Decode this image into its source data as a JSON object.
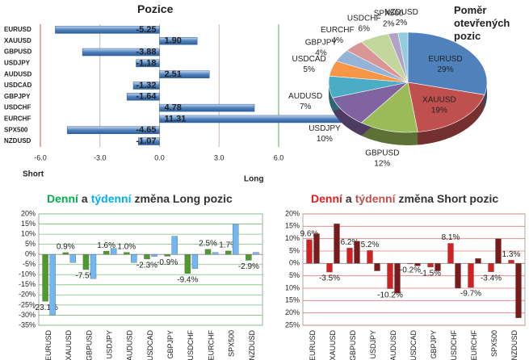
{
  "chart_data": [
    {
      "type": "hbar",
      "title": "Pozice",
      "categories": [
        "EURUSD",
        "XAUUSD",
        "GBPUSD",
        "USDJPY",
        "AUDUSD",
        "USDCAD",
        "GBPJPY",
        "USDCHF",
        "EURCHF",
        "SPX500",
        "NZDUSD"
      ],
      "values": [
        -5.25,
        1.9,
        -3.88,
        -1.18,
        2.51,
        -1.32,
        -1.64,
        4.78,
        11.31,
        -4.65,
        -1.07
      ],
      "value_labels": [
        "-5.25",
        "1.90",
        "-3.88",
        "-1.18",
        "2.51",
        "-1.32",
        "-1.64",
        "4.78",
        "11.31",
        "-4.65",
        "-1.07"
      ],
      "color": "#4f81bd",
      "xlim": [
        -6,
        6
      ],
      "xticks": [
        {
          "value": -6,
          "label": "-6.0"
        },
        {
          "value": -3,
          "label": "-3.0"
        },
        {
          "value": 0,
          "label": "0.0"
        },
        {
          "value": 3,
          "label": "3.0"
        },
        {
          "value": 6,
          "label": "6.0"
        }
      ],
      "left_label": "Short",
      "right_label": "Long"
    },
    {
      "type": "pie",
      "title": "Poměr otevřených pozic",
      "categories": [
        "EURUSD",
        "XAUUSD",
        "GBPUSD",
        "USDJPY",
        "AUDUSD",
        "USDCAD",
        "GBPJPY",
        "EURCHF",
        "USDCHF",
        "SPX500",
        "NZDUSD"
      ],
      "values": [
        29,
        19,
        12,
        10,
        7,
        5,
        4,
        4,
        6,
        2,
        2
      ],
      "value_labels": [
        "29%",
        "19%",
        "12%",
        "10%",
        "7%",
        "5%",
        "4%",
        "4%",
        "6%",
        "2%",
        "2%"
      ],
      "colors": [
        "#4f81bd",
        "#c0504d",
        "#9bbb59",
        "#8064a2",
        "#4bacc6",
        "#f79646",
        "#95b3d7",
        "#d99694",
        "#c3d69b",
        "#b2a2c7",
        "#93cddd"
      ]
    },
    {
      "type": "groupbar",
      "title": [
        {
          "text": "Denní",
          "color": "#00b050"
        },
        {
          "text": "a",
          "color": "#333333"
        },
        {
          "text": "týdenní",
          "color": "#00b0f0"
        },
        {
          "text": "změna Long pozic",
          "color": "#333333"
        }
      ],
      "categories": [
        "EURUSD",
        "XAUUSD",
        "GBPUSD",
        "USDJPY",
        "AUDUSD",
        "USDCAD",
        "GBPJPY",
        "USDCHF",
        "EURCHF",
        "SPX500",
        "NZDUSD"
      ],
      "series": [
        {
          "color": "#4e9a2a",
          "values": [
            -23.1,
            0.9,
            -7.5,
            1.6,
            1.0,
            -2.3,
            -0.9,
            -9.4,
            2.5,
            1.7,
            -2.9
          ],
          "value_labels": [
            "-23.1%",
            "0.9%",
            "-7.5%",
            "1.6%",
            "1.0%",
            "-2.3%",
            "-0.9%",
            "-9.4%",
            "2.5%",
            "1.7%",
            "-2.9%"
          ]
        },
        {
          "color": "#6fb7f5",
          "values": [
            -30,
            -4,
            -12,
            3,
            -4,
            -1,
            9,
            -7,
            1,
            15,
            1
          ]
        }
      ],
      "ylim": [
        -35,
        20
      ],
      "yticks": [
        {
          "value": 20,
          "label": "20%"
        },
        {
          "value": 15,
          "label": "15%"
        },
        {
          "value": 10,
          "label": "10%"
        },
        {
          "value": 5,
          "label": "5%"
        },
        {
          "value": 0,
          "label": "0%"
        },
        {
          "value": -5,
          "label": "-5%"
        },
        {
          "value": -10,
          "label": "-10%"
        },
        {
          "value": -15,
          "label": "-15%"
        },
        {
          "value": -20,
          "label": "-20%"
        },
        {
          "value": -25,
          "label": "-25%"
        },
        {
          "value": -30,
          "label": "-30%"
        },
        {
          "value": -35,
          "label": "-35%"
        }
      ],
      "grid_color": "#7cc47c"
    },
    {
      "type": "groupbar",
      "title": [
        {
          "text": "Denní",
          "color": "#e0201b"
        },
        {
          "text": "a",
          "color": "#333333"
        },
        {
          "text": "týdenní",
          "color": "#c0504d"
        },
        {
          "text": "změna Short pozic",
          "color": "#333333"
        }
      ],
      "categories": [
        "EURUSD",
        "XAUUSD",
        "GBPUSD",
        "USDJPY",
        "AUDUSD",
        "USDCAD",
        "GBPJPY",
        "USDCHF",
        "EURCHF",
        "SPX500",
        "NZDUSD"
      ],
      "series": [
        {
          "color": "#d42020",
          "values": [
            9.6,
            -3.5,
            6.2,
            5.2,
            -10.2,
            -0.2,
            -1.5,
            8.1,
            -9.7,
            -3.4,
            1.3
          ],
          "value_labels": [
            "9.6%",
            "-3.5%",
            "6.2%",
            "5.2%",
            "-10.2%",
            "-0.2%",
            "-1.5%",
            "8.1%",
            "-9.7%",
            "-3.4%",
            "1.3%"
          ]
        },
        {
          "color": "#7a1a1a",
          "values": [
            12,
            16,
            9,
            -3,
            -12,
            -1,
            -3,
            -10,
            2,
            10,
            -22
          ]
        }
      ],
      "ylim": [
        -25,
        20
      ],
      "yticks": [
        {
          "value": 20,
          "label": "20%"
        },
        {
          "value": 15,
          "label": "15%"
        },
        {
          "value": 10,
          "label": "10%"
        },
        {
          "value": 5,
          "label": "5%"
        },
        {
          "value": 0,
          "label": "0%"
        },
        {
          "value": -5,
          "label": "5%"
        },
        {
          "value": -10,
          "label": "10%"
        },
        {
          "value": -15,
          "label": "15%"
        },
        {
          "value": -20,
          "label": "20%"
        },
        {
          "value": -25,
          "label": "25%"
        }
      ],
      "grid_color": "#e07a7a"
    }
  ]
}
